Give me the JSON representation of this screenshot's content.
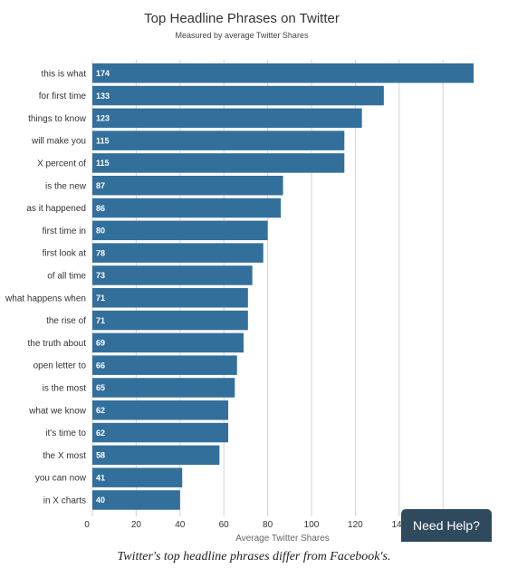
{
  "chart_data": {
    "type": "bar",
    "orientation": "horizontal",
    "title": "Top Headline Phrases on Twitter",
    "subtitle": "Measured by average Twitter Shares",
    "xlabel": "Average Twitter Shares",
    "ylabel": "",
    "xlim": [
      0,
      175
    ],
    "xticks": [
      0,
      20,
      40,
      60,
      80,
      100,
      120,
      140
    ],
    "grid": true,
    "data_labels": true,
    "bar_color": "#336f9b",
    "categories": [
      "this is what",
      "for first time",
      "things to know",
      "will make you",
      "X percent of",
      "is the new",
      "as it happened",
      "first time in",
      "first look at",
      "of all time",
      "what happens when",
      "the rise of",
      "the truth about",
      "open letter to",
      "is the most",
      "what we know",
      "it's time to",
      "the X most",
      "you can now",
      "in X charts"
    ],
    "values": [
      174,
      133,
      123,
      115,
      115,
      87,
      86,
      80,
      78,
      73,
      71,
      71,
      69,
      66,
      65,
      62,
      62,
      58,
      41,
      40
    ]
  },
  "help_button": {
    "label": "Need Help?"
  },
  "caption": "Twitter's top headline phrases differ from Facebook's."
}
